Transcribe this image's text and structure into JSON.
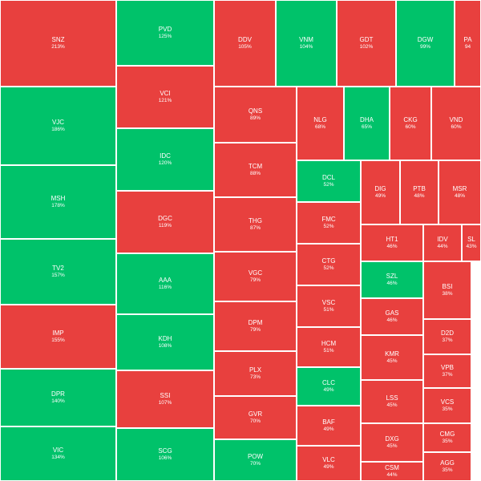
{
  "colors": {
    "up": "#00c26a",
    "down": "#e8403e"
  },
  "chart_data": {
    "type": "treemap",
    "items": [
      {
        "ticker": "SNZ",
        "pct": "213%",
        "value": 213,
        "color": "down"
      },
      {
        "ticker": "PVD",
        "pct": "125%",
        "value": 125,
        "color": "up"
      },
      {
        "ticker": "DDV",
        "pct": "105%",
        "value": 105,
        "color": "down"
      },
      {
        "ticker": "VNM",
        "pct": "104%",
        "value": 104,
        "color": "up"
      },
      {
        "ticker": "GDT",
        "pct": "102%",
        "value": 102,
        "color": "down"
      },
      {
        "ticker": "DGW",
        "pct": "99%",
        "value": 99,
        "color": "up"
      },
      {
        "ticker": "PA",
        "pct": "94",
        "value": 94,
        "color": "down"
      },
      {
        "ticker": "VCI",
        "pct": "121%",
        "value": 121,
        "color": "down"
      },
      {
        "ticker": "QNS",
        "pct": "89%",
        "value": 89,
        "color": "down"
      },
      {
        "ticker": "NLG",
        "pct": "68%",
        "value": 68,
        "color": "down"
      },
      {
        "ticker": "DHA",
        "pct": "65%",
        "value": 65,
        "color": "up"
      },
      {
        "ticker": "CKG",
        "pct": "60%",
        "value": 60,
        "color": "down"
      },
      {
        "ticker": "VND",
        "pct": "60%",
        "value": 60,
        "color": "down"
      },
      {
        "ticker": "VJC",
        "pct": "186%",
        "value": 186,
        "color": "up"
      },
      {
        "ticker": "IDC",
        "pct": "120%",
        "value": 120,
        "color": "up"
      },
      {
        "ticker": "TCM",
        "pct": "88%",
        "value": 88,
        "color": "down"
      },
      {
        "ticker": "DCL",
        "pct": "52%",
        "value": 52,
        "color": "up"
      },
      {
        "ticker": "DIG",
        "pct": "49%",
        "value": 49,
        "color": "down"
      },
      {
        "ticker": "PTB",
        "pct": "48%",
        "value": 48,
        "color": "down"
      },
      {
        "ticker": "MSR",
        "pct": "48%",
        "value": 48,
        "color": "down"
      },
      {
        "ticker": "MSH",
        "pct": "178%",
        "value": 178,
        "color": "up"
      },
      {
        "ticker": "DGC",
        "pct": "119%",
        "value": 119,
        "color": "down"
      },
      {
        "ticker": "THG",
        "pct": "87%",
        "value": 87,
        "color": "down"
      },
      {
        "ticker": "FMC",
        "pct": "52%",
        "value": 52,
        "color": "down"
      },
      {
        "ticker": "HT1",
        "pct": "46%",
        "value": 46,
        "color": "down"
      },
      {
        "ticker": "IDV",
        "pct": "44%",
        "value": 44,
        "color": "down"
      },
      {
        "ticker": "SL",
        "pct": "43%",
        "value": 43,
        "color": "down"
      },
      {
        "ticker": "TV2",
        "pct": "157%",
        "value": 157,
        "color": "up"
      },
      {
        "ticker": "AAA",
        "pct": "116%",
        "value": 116,
        "color": "up"
      },
      {
        "ticker": "VGC",
        "pct": "79%",
        "value": 79,
        "color": "down"
      },
      {
        "ticker": "CTG",
        "pct": "52%",
        "value": 52,
        "color": "down"
      },
      {
        "ticker": "SZL",
        "pct": "46%",
        "value": 46,
        "color": "up"
      },
      {
        "ticker": "BSI",
        "pct": "38%",
        "value": 38,
        "color": "down"
      },
      {
        "ticker": "IMP",
        "pct": "155%",
        "value": 155,
        "color": "down"
      },
      {
        "ticker": "DPM",
        "pct": "79%",
        "value": 79,
        "color": "down"
      },
      {
        "ticker": "VSC",
        "pct": "51%",
        "value": 51,
        "color": "down"
      },
      {
        "ticker": "GAS",
        "pct": "46%",
        "value": 46,
        "color": "down"
      },
      {
        "ticker": "D2D",
        "pct": "37%",
        "value": 37,
        "color": "down"
      },
      {
        "ticker": "KDH",
        "pct": "108%",
        "value": 108,
        "color": "up"
      },
      {
        "ticker": "HCM",
        "pct": "51%",
        "value": 51,
        "color": "down"
      },
      {
        "ticker": "KMR",
        "pct": "45%",
        "value": 45,
        "color": "down"
      },
      {
        "ticker": "VPB",
        "pct": "37%",
        "value": 37,
        "color": "down"
      },
      {
        "ticker": "DPR",
        "pct": "140%",
        "value": 140,
        "color": "up"
      },
      {
        "ticker": "PLX",
        "pct": "73%",
        "value": 73,
        "color": "down"
      },
      {
        "ticker": "CLC",
        "pct": "49%",
        "value": 49,
        "color": "up"
      },
      {
        "ticker": "LSS",
        "pct": "45%",
        "value": 45,
        "color": "down"
      },
      {
        "ticker": "VCS",
        "pct": "35%",
        "value": 35,
        "color": "down"
      },
      {
        "ticker": "SSI",
        "pct": "107%",
        "value": 107,
        "color": "down"
      },
      {
        "ticker": "GVR",
        "pct": "70%",
        "value": 70,
        "color": "down"
      },
      {
        "ticker": "BAF",
        "pct": "49%",
        "value": 49,
        "color": "down"
      },
      {
        "ticker": "DXG",
        "pct": "45%",
        "value": 45,
        "color": "down"
      },
      {
        "ticker": "CMG",
        "pct": "35%",
        "value": 35,
        "color": "down"
      },
      {
        "ticker": "VIC",
        "pct": "134%",
        "value": 134,
        "color": "up"
      },
      {
        "ticker": "SCG",
        "pct": "106%",
        "value": 106,
        "color": "up"
      },
      {
        "ticker": "POW",
        "pct": "70%",
        "value": 70,
        "color": "up"
      },
      {
        "ticker": "VLC",
        "pct": "49%",
        "value": 49,
        "color": "down"
      },
      {
        "ticker": "CSM",
        "pct": "44%",
        "value": 44,
        "color": "down"
      },
      {
        "ticker": "AGG",
        "pct": "35%",
        "value": 35,
        "color": "down"
      }
    ]
  }
}
